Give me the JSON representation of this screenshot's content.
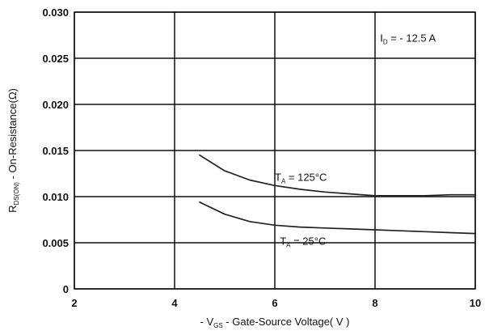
{
  "chart_data": {
    "type": "line",
    "title": "",
    "xlabel": {
      "prefix": "- V",
      "sub": "GS",
      "suffix": " - Gate-Source Voltage( V )"
    },
    "ylabel": {
      "prefix": "R",
      "sub": "DS(ON)",
      "suffix": " - On-Resistance(Ω)"
    },
    "xlim": [
      2,
      10
    ],
    "ylim": [
      0,
      0.03
    ],
    "xticks": [
      2,
      4,
      6,
      8,
      10
    ],
    "xtick_labels": [
      "2",
      "4",
      "6",
      "8",
      "10"
    ],
    "yticks": [
      0,
      0.005,
      0.01,
      0.015,
      0.02,
      0.025,
      0.03
    ],
    "ytick_labels": [
      "0",
      "0.005",
      "0.010",
      "0.015",
      "0.020",
      "0.025",
      "0.030"
    ],
    "grid": true,
    "series": [
      {
        "name": "T_A = 125°C",
        "x": [
          4.5,
          5.0,
          5.5,
          6.0,
          6.5,
          7.0,
          7.5,
          8.0,
          8.5,
          9.0,
          9.5,
          10.0
        ],
        "y": [
          0.0145,
          0.0128,
          0.0118,
          0.0112,
          0.0108,
          0.0105,
          0.0103,
          0.0101,
          0.0101,
          0.0101,
          0.0102,
          0.0102
        ]
      },
      {
        "name": "T_A = 25°C",
        "x": [
          4.5,
          5.0,
          5.5,
          6.0,
          6.5,
          7.0,
          7.5,
          8.0,
          8.5,
          9.0,
          9.5,
          10.0
        ],
        "y": [
          0.0094,
          0.0081,
          0.0073,
          0.0069,
          0.0067,
          0.0066,
          0.0065,
          0.0064,
          0.0063,
          0.0062,
          0.0061,
          0.006
        ]
      }
    ],
    "annotations": [
      {
        "prefix": "I",
        "sub": "D",
        "suffix": " = - 12.5 A",
        "x": 8.1,
        "y": 0.0268
      },
      {
        "prefix": "T",
        "sub": "A",
        "suffix": " = 125°C",
        "x": 6.0,
        "y": 0.0117
      },
      {
        "prefix": "T",
        "sub": "A",
        "suffix": " = 25°C",
        "x": 6.1,
        "y": 0.0048
      }
    ],
    "colors": {
      "line": "#222222",
      "grid": "#111111",
      "text": "#111111"
    }
  }
}
